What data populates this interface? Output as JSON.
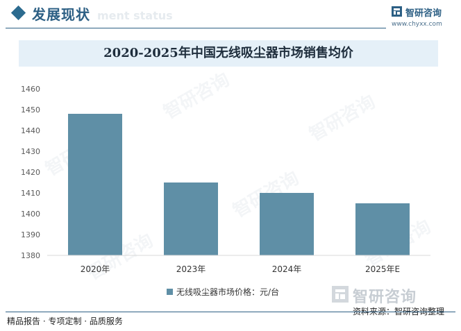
{
  "header": {
    "section_title": "发展现状",
    "section_title_en": "ment status",
    "brand_name": "智研咨询",
    "brand_url": "www.chyxx.com"
  },
  "chart_data": {
    "type": "bar",
    "title": "2020-2025年中国无线吸尘器市场销售均价",
    "categories": [
      "2020年",
      "2023年",
      "2024年",
      "2025年E"
    ],
    "series": [
      {
        "name": "无线吸尘器市场价格：元/台",
        "values": [
          1448,
          1415,
          1410,
          1405
        ]
      }
    ],
    "ylim": [
      1380,
      1460
    ],
    "yticks": [
      1380,
      1390,
      1400,
      1410,
      1420,
      1430,
      1440,
      1450,
      1460
    ],
    "grid": false,
    "legend": "bottom",
    "colors": {
      "bar": "#5f8fa6"
    }
  },
  "source": {
    "watermark_name": "智研咨询",
    "text": "资料来源：智研咨询整理"
  },
  "footer": {
    "text": "精品报告 · 专项定制 · 品质服务"
  },
  "watermark": {
    "text": "智研咨询"
  }
}
